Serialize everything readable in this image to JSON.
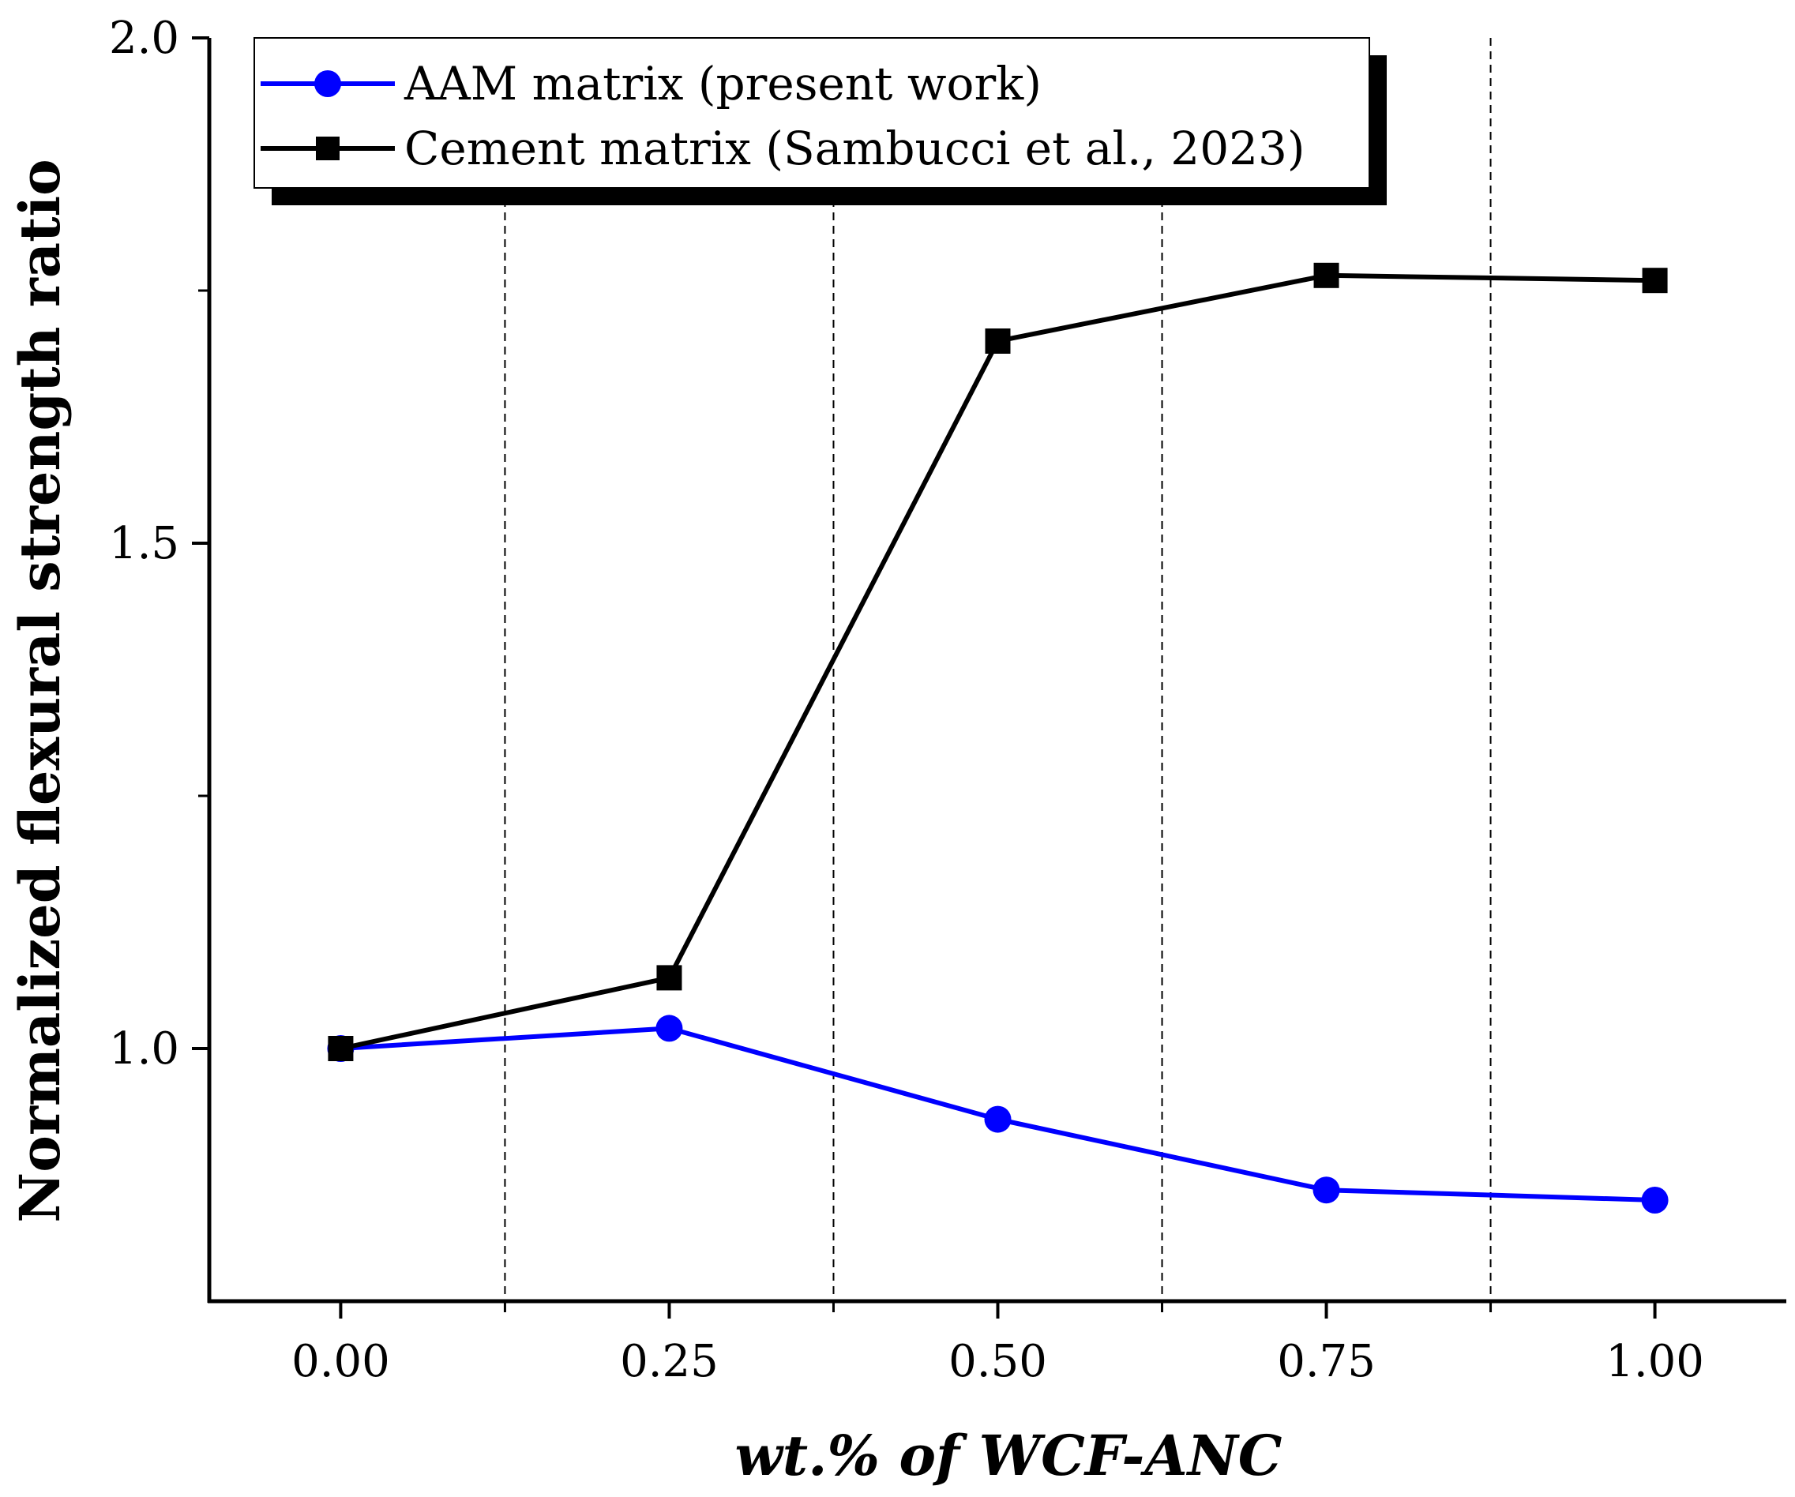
{
  "chart_data": {
    "type": "line",
    "xlabel": "wt.% of WCF-ANC",
    "ylabel": "Normalized flexural strength ratio",
    "x": [
      0.0,
      0.25,
      0.5,
      0.75,
      1.0
    ],
    "x_tick_labels": [
      "0.00",
      "0.25",
      "0.50",
      "0.75",
      "1.00"
    ],
    "y_tick_labels": [
      "1.0",
      "1.5",
      "2.0"
    ],
    "xlim": [
      -0.1,
      1.1
    ],
    "ylim": [
      0.75,
      2.0
    ],
    "grid": "vertical dashed lines at 0.125, 0.375, 0.625, 0.875",
    "legend_position": "top-left",
    "series": [
      {
        "name": "AAM matrix (present work)",
        "values": [
          1.0,
          1.02,
          0.93,
          0.86,
          0.85
        ],
        "color": "#0000ff",
        "marker": "circle"
      },
      {
        "name": "Cement matrix (Sambucci et al., 2023)",
        "values": [
          1.0,
          1.07,
          1.7,
          1.765,
          1.76
        ],
        "color": "#000000",
        "marker": "square"
      }
    ]
  }
}
